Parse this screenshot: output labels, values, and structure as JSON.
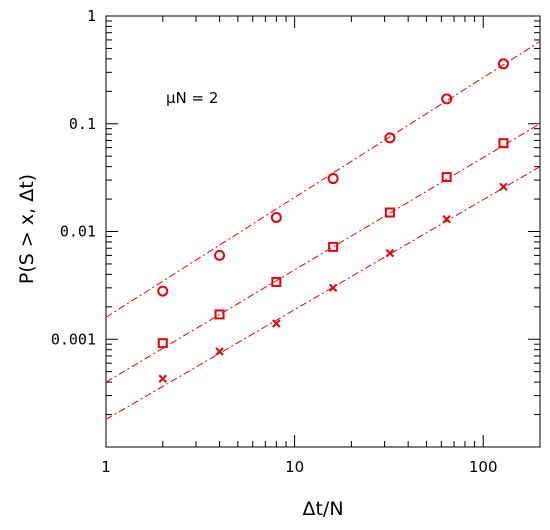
{
  "chart_data": {
    "type": "scatter",
    "title": "",
    "xlabel": "Δt/N",
    "ylabel": "P(S > x, Δt)",
    "xscale": "log",
    "yscale": "log",
    "xlim": [
      1,
      200
    ],
    "ylim": [
      0.0001,
      1
    ],
    "x_ticks": [
      {
        "value": 1,
        "label": "1"
      },
      {
        "value": 10,
        "label": "10"
      },
      {
        "value": 100,
        "label": "100"
      }
    ],
    "y_ticks": [
      {
        "value": 1,
        "label": "1"
      },
      {
        "value": 0.1,
        "label": "0.1"
      },
      {
        "value": 0.01,
        "label": "0.01"
      },
      {
        "value": 0.001,
        "label": "0.001"
      }
    ],
    "annotation": "μN = 2",
    "grid": false,
    "color": "#e8000b",
    "series": [
      {
        "marker": "circle",
        "x": [
          2,
          4,
          8,
          16,
          32,
          64,
          128
        ],
        "y": [
          0.0028,
          0.006,
          0.0135,
          0.031,
          0.074,
          0.17,
          0.36
        ],
        "fit": {
          "x": [
            1,
            200
          ],
          "y": [
            0.0016,
            0.58
          ]
        }
      },
      {
        "marker": "square",
        "x": [
          2,
          4,
          8,
          16,
          32,
          64,
          128
        ],
        "y": [
          0.00092,
          0.0017,
          0.0034,
          0.0072,
          0.015,
          0.032,
          0.066
        ],
        "fit": {
          "x": [
            1,
            200
          ],
          "y": [
            0.0004,
            0.1
          ]
        }
      },
      {
        "marker": "cross",
        "x": [
          2,
          4,
          8,
          16,
          32,
          64,
          128
        ],
        "y": [
          0.00043,
          0.00077,
          0.0014,
          0.003,
          0.0063,
          0.013,
          0.026
        ],
        "fit": {
          "x": [
            1,
            200
          ],
          "y": [
            0.00018,
            0.04
          ]
        }
      }
    ]
  }
}
